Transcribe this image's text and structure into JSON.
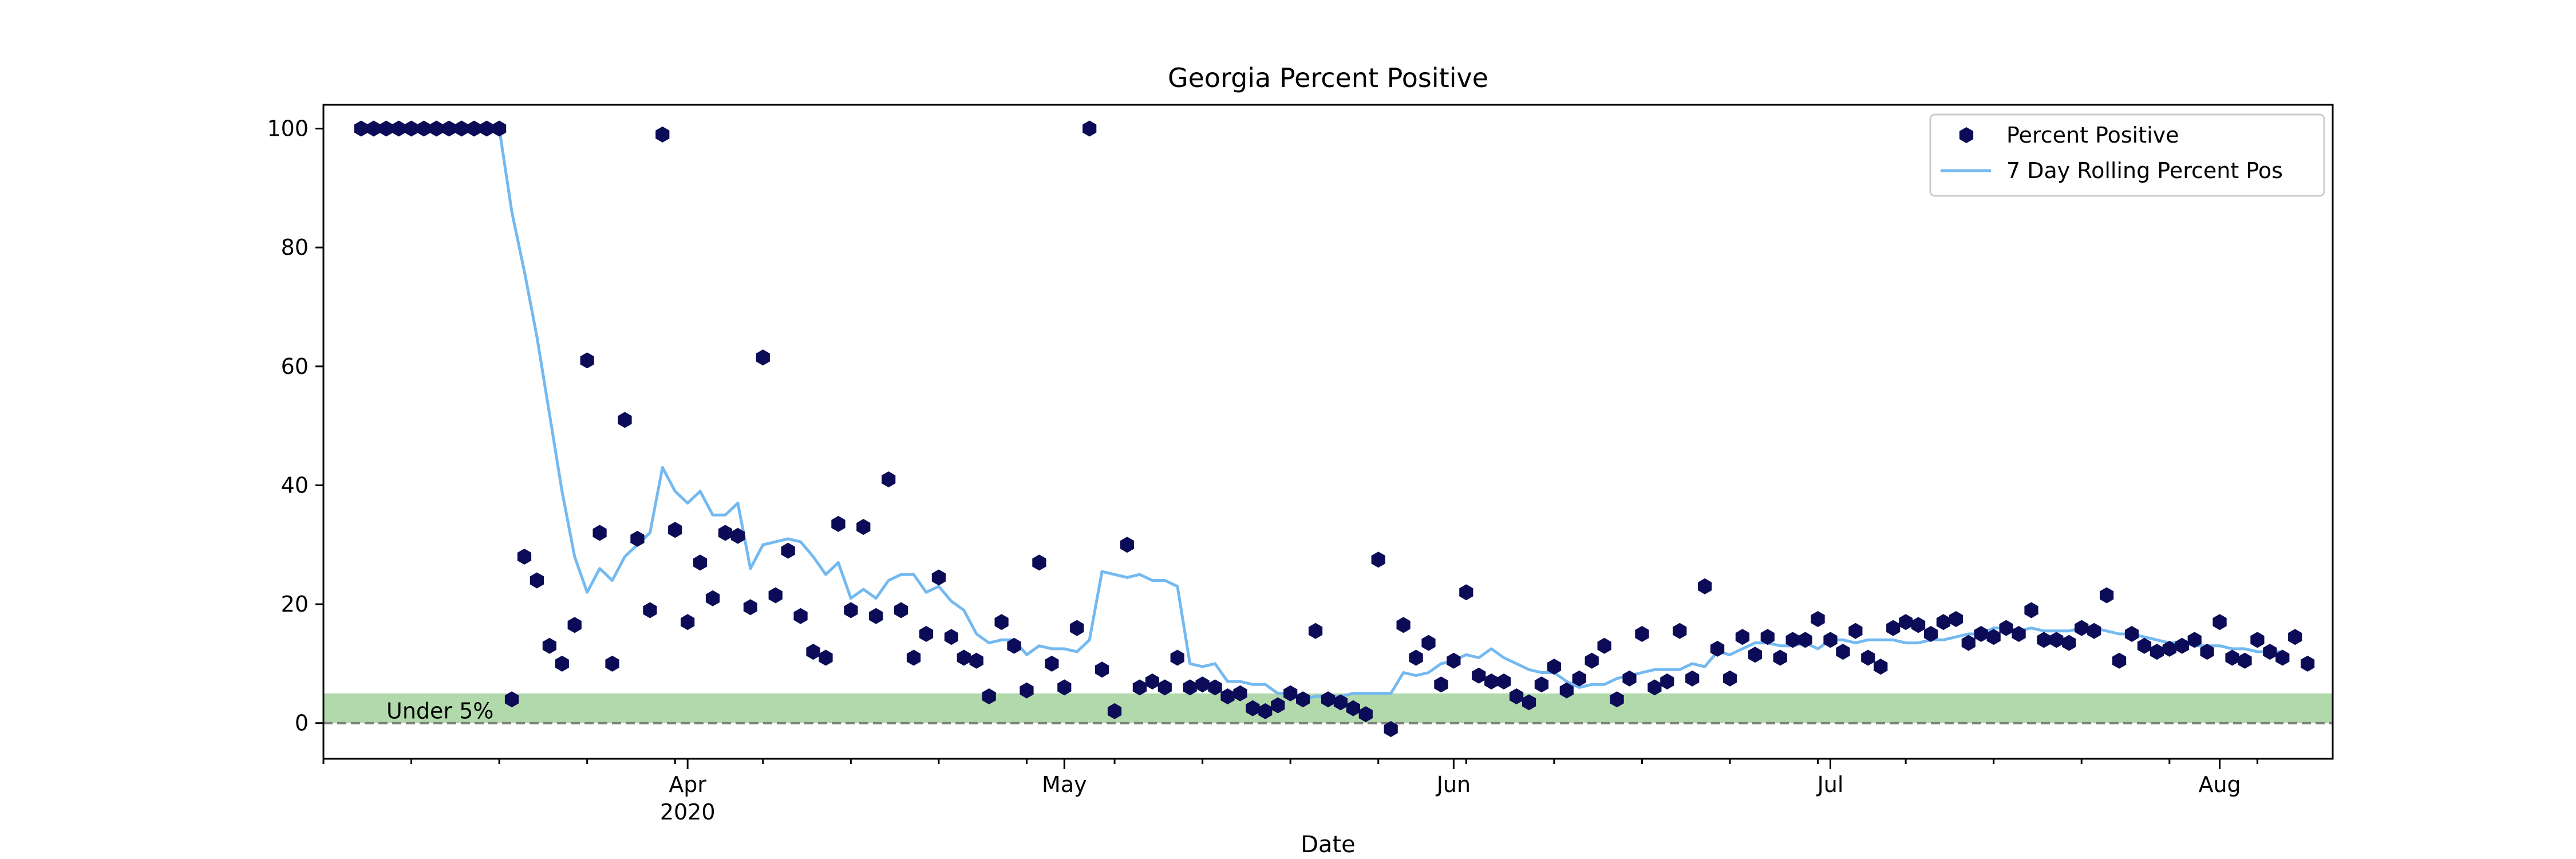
{
  "chart_data": {
    "type": "scatter",
    "title": "Georgia Percent Positive",
    "xlabel": "Date",
    "ylabel": "",
    "ylim": [
      -6,
      104
    ],
    "xlim": [
      "2020-03-03",
      "2020-08-10"
    ],
    "y_ticks": [
      0,
      20,
      40,
      60,
      80,
      100
    ],
    "x_ticks": [
      {
        "date": "2020-04-01",
        "label": "Apr",
        "sublabel": "2020"
      },
      {
        "date": "2020-05-01",
        "label": "May",
        "sublabel": ""
      },
      {
        "date": "2020-06-01",
        "label": "Jun",
        "sublabel": ""
      },
      {
        "date": "2020-07-01",
        "label": "Jul",
        "sublabel": ""
      },
      {
        "date": "2020-08-01",
        "label": "Aug",
        "sublabel": ""
      }
    ],
    "legend_position": "upper right",
    "colors": {
      "points": "#0b0b57",
      "rolling_line": "#74b9f0",
      "band": "#b2d9ab",
      "zero_line": "#808080"
    },
    "reference": {
      "label": "Under 5%",
      "ymin": 0,
      "ymax": 5,
      "zero_line": 0
    },
    "series": [
      {
        "name": "Percent Positive",
        "kind": "scatter",
        "start_date": "2020-03-06",
        "values": [
          100,
          100,
          100,
          100,
          100,
          100,
          100,
          100,
          100,
          100,
          100,
          100,
          4,
          28,
          24,
          13,
          10,
          16.5,
          61,
          32,
          10,
          51,
          31,
          19,
          99,
          32.5,
          17,
          27,
          21,
          32,
          31.5,
          19.5,
          61.5,
          21.5,
          29,
          18,
          12,
          11,
          33.5,
          19,
          33,
          18,
          41,
          19,
          11,
          15,
          24.5,
          14.5,
          11,
          10.5,
          4.5,
          17,
          13,
          5.5,
          27,
          10,
          6,
          16,
          100,
          9,
          2,
          30,
          6,
          7,
          6,
          11,
          6,
          6.5,
          6,
          4.5,
          5,
          2.5,
          2,
          3,
          5,
          4,
          15.5,
          4,
          3.5,
          2.5,
          1.5,
          27.5,
          -1,
          16.5,
          11,
          13.5,
          6.5,
          10.5,
          22,
          8,
          7,
          7,
          4.5,
          3.5,
          6.5,
          9.5,
          5.5,
          7.5,
          10.5,
          13,
          4,
          7.5,
          15,
          6,
          7,
          15.5,
          7.5,
          23,
          12.5,
          7.5,
          14.5,
          11.5,
          14.5,
          11,
          14,
          14,
          17.5,
          14,
          12,
          15.5,
          11,
          9.5,
          16,
          17,
          16.5,
          15,
          17,
          17.5,
          13.5,
          15,
          14.5,
          16,
          15,
          19,
          14,
          14,
          13.5,
          16,
          15.5,
          21.5,
          10.5,
          15,
          13,
          12,
          12.5,
          13,
          14,
          12,
          17,
          11,
          10.5,
          14,
          12,
          11,
          14.5,
          10
        ]
      },
      {
        "name": "7 Day Rolling Percent Pos",
        "kind": "line",
        "start_date": "2020-03-06",
        "values": [
          100,
          100,
          100,
          100,
          100,
          100,
          100,
          100,
          100,
          100,
          100,
          100,
          86,
          76,
          65,
          52,
          39,
          28,
          22,
          26,
          24,
          28,
          30,
          32,
          43,
          39,
          37,
          39,
          35,
          35,
          37,
          26,
          30,
          30.5,
          31,
          30.5,
          28,
          25,
          27,
          21,
          22.5,
          21,
          24,
          25,
          25,
          22,
          23,
          20.5,
          19,
          15,
          13.5,
          14,
          14,
          11.5,
          13,
          12.5,
          12.5,
          12,
          14,
          25.5,
          25,
          24.5,
          25,
          24,
          24,
          23,
          10,
          9.5,
          10,
          7,
          7,
          6.5,
          6.5,
          5,
          5,
          4,
          4.5,
          4.5,
          4.5,
          5,
          5,
          5,
          5,
          8.5,
          8,
          8.5,
          10,
          10.5,
          11.5,
          11,
          12.5,
          11,
          10,
          9,
          8.5,
          8.5,
          7,
          6,
          6.5,
          6.5,
          7.5,
          8,
          8.5,
          9,
          9,
          9,
          10,
          9.5,
          12,
          11.5,
          12.5,
          13.5,
          13.5,
          13,
          13,
          13.5,
          12.5,
          14,
          14,
          13.5,
          14,
          14,
          14,
          13.5,
          13.5,
          14,
          14,
          14.5,
          15,
          15,
          16,
          16,
          15.5,
          16,
          15.5,
          15.5,
          15.5,
          16,
          16,
          15.5,
          15,
          15,
          14.5,
          14,
          13.5,
          13.5,
          13,
          13,
          13,
          12.5,
          12.5,
          12,
          12,
          12
        ]
      }
    ]
  }
}
